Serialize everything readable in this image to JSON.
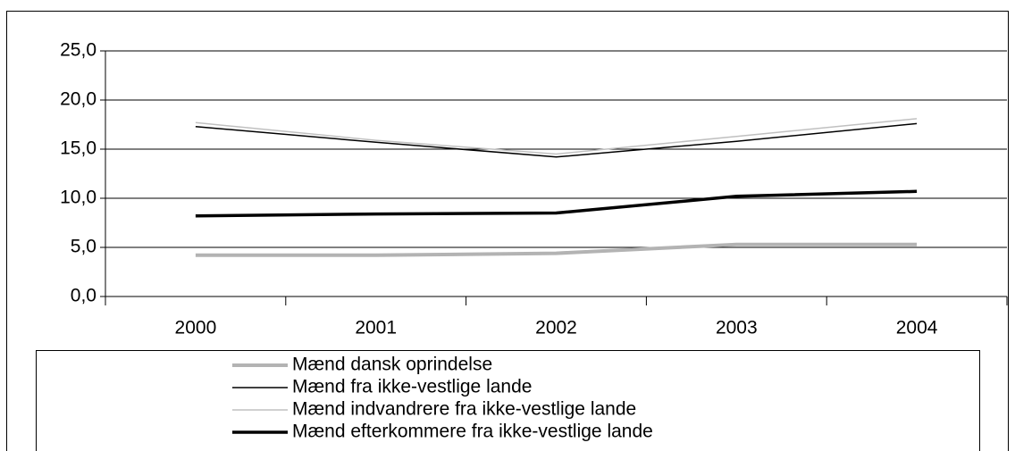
{
  "chart_data": {
    "type": "line",
    "categories": [
      "2000",
      "2001",
      "2002",
      "2003",
      "2004"
    ],
    "series": [
      {
        "name": "Mænd dansk oprindelse",
        "color": "#b3b3b3",
        "width": 4,
        "values": [
          4.2,
          4.2,
          4.4,
          5.3,
          5.3
        ]
      },
      {
        "name": "Mænd fra ikke-vestlige lande",
        "color": "#000000",
        "width": 1.5,
        "values": [
          17.3,
          15.7,
          14.2,
          15.8,
          17.6
        ]
      },
      {
        "name": "Mænd indvandrere fra ikke-vestlige lande",
        "color": "#c0c0c0",
        "width": 1.5,
        "values": [
          17.7,
          15.9,
          14.5,
          16.3,
          18.1
        ]
      },
      {
        "name": "Mænd efterkommere fra ikke-vestlige lande",
        "color": "#000000",
        "width": 3.5,
        "values": [
          8.2,
          8.4,
          8.5,
          10.2,
          10.7
        ]
      }
    ],
    "ylim": [
      0,
      25
    ],
    "yticks": [
      {
        "value": 0,
        "label": "0,0"
      },
      {
        "value": 5,
        "label": "5,0"
      },
      {
        "value": 10,
        "label": "10,0"
      },
      {
        "value": 15,
        "label": "15,0"
      },
      {
        "value": 20,
        "label": "20,0"
      },
      {
        "value": 25,
        "label": "25,0"
      }
    ],
    "grid": true
  }
}
